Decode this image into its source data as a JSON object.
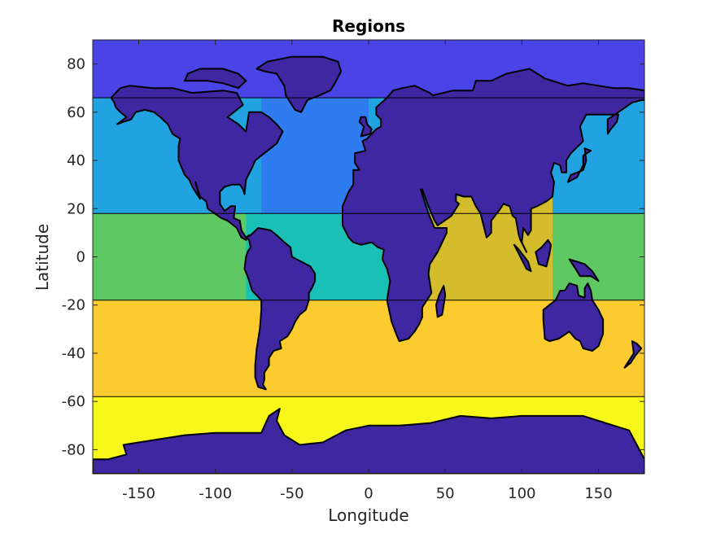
{
  "chart_data": {
    "type": "heatmap",
    "title": "Regions",
    "xlabel": "Longitude",
    "ylabel": "Latitude",
    "xlim": [
      -180,
      180
    ],
    "ylim": [
      -90,
      90
    ],
    "xticks": [
      -150,
      -100,
      -50,
      0,
      50,
      100,
      150
    ],
    "yticks": [
      -80,
      -60,
      -40,
      -20,
      0,
      20,
      40,
      60,
      80
    ],
    "grid": false,
    "regions": [
      {
        "lat_range": [
          66,
          90
        ],
        "lon_range": [
          -180,
          180
        ],
        "color": "#4a44e6"
      },
      {
        "lat_range": [
          18,
          66
        ],
        "lon_range": [
          -180,
          180
        ],
        "color": "#20a3e0"
      },
      {
        "lat_range": [
          18,
          66
        ],
        "lon_range": [
          -70,
          0
        ],
        "color": "#2e7cf0"
      },
      {
        "lat_range": [
          -18,
          18
        ],
        "lon_range": [
          -180,
          180
        ],
        "color": "#5ec962"
      },
      {
        "lat_range": [
          -18,
          18
        ],
        "lon_range": [
          -80,
          20
        ],
        "color": "#1abfb5"
      },
      {
        "lat_range": [
          -18,
          25
        ],
        "lon_range": [
          40,
          120
        ],
        "color": "#d4bc2c"
      },
      {
        "lat_range": [
          -58,
          -18
        ],
        "lon_range": [
          -180,
          180
        ],
        "color": "#fbcb2f"
      },
      {
        "lat_range": [
          -90,
          -58
        ],
        "lon_range": [
          -180,
          180
        ],
        "color": "#f7f719"
      }
    ],
    "land_color": "#3e27a1",
    "region_boundaries_lat": [
      66,
      18,
      -18,
      -58
    ]
  }
}
